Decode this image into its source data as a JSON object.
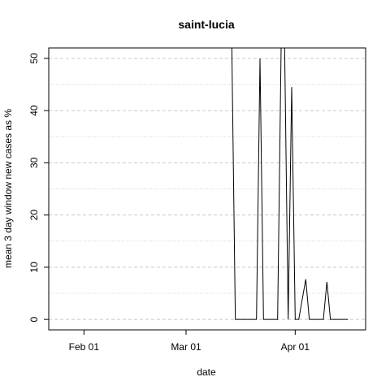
{
  "chart_data": {
    "type": "line",
    "title": "saint-lucia",
    "xlabel": "date",
    "ylabel": "mean  3  day window new cases as %",
    "x_ticks": [
      {
        "date": "2020-02-01",
        "label": "Feb 01"
      },
      {
        "date": "2020-03-01",
        "label": "Mar 01"
      },
      {
        "date": "2020-04-01",
        "label": "Apr 01"
      }
    ],
    "y_ticks": [
      0,
      10,
      20,
      30,
      40,
      50
    ],
    "xlim": [
      "2020-01-22",
      "2020-04-21"
    ],
    "ylim": [
      -2,
      52
    ],
    "grid": {
      "major_dashed": true,
      "minor_dotted": true
    },
    "series": [
      {
        "color": "#000000",
        "points": [
          {
            "x": "2020-03-14",
            "y": 52
          },
          {
            "x": "2020-03-15",
            "y": 0
          },
          {
            "x": "2020-03-21",
            "y": 0
          },
          {
            "x": "2020-03-22",
            "y": 50
          },
          {
            "x": "2020-03-23",
            "y": 0
          },
          {
            "x": "2020-03-27",
            "y": 0
          },
          {
            "x": "2020-03-28",
            "y": 52
          },
          {
            "x": "2020-03-29",
            "y": 52
          },
          {
            "x": "2020-03-30",
            "y": 0
          },
          {
            "x": "2020-03-31",
            "y": 44.5
          },
          {
            "x": "2020-04-01",
            "y": 0
          },
          {
            "x": "2020-04-02",
            "y": 0
          },
          {
            "x": "2020-04-04",
            "y": 7.7
          },
          {
            "x": "2020-04-05",
            "y": 0
          },
          {
            "x": "2020-04-09",
            "y": 0
          },
          {
            "x": "2020-04-10",
            "y": 7.2
          },
          {
            "x": "2020-04-11",
            "y": 0
          },
          {
            "x": "2020-04-16",
            "y": 0
          }
        ]
      }
    ]
  }
}
